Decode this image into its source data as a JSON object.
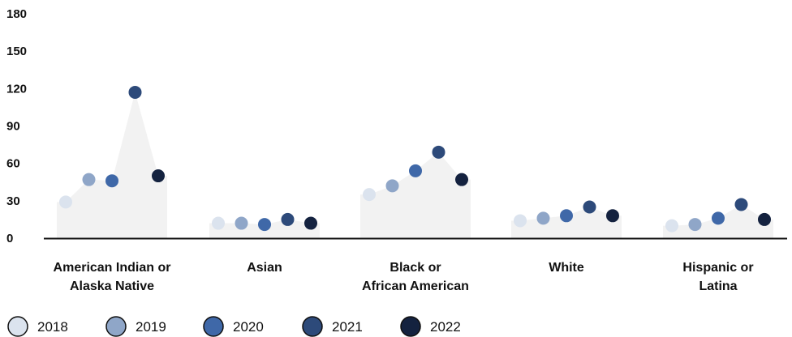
{
  "chart_data": {
    "type": "scatter",
    "title": "",
    "xlabel": "",
    "ylabel": "",
    "ylim": [
      0,
      180
    ],
    "yticks": [
      "0",
      "30",
      "60",
      "90",
      "120",
      "150",
      "180"
    ],
    "grid": false,
    "legend_position": "bottom-left",
    "categories": [
      {
        "lines": [
          "American Indian or",
          "Alaska Native"
        ]
      },
      {
        "lines": [
          "Asian"
        ]
      },
      {
        "lines": [
          "Black or",
          "African American"
        ]
      },
      {
        "lines": [
          "White"
        ]
      },
      {
        "lines": [
          "Hispanic or",
          "Latina"
        ]
      }
    ],
    "series": [
      {
        "name": "2018",
        "color": "#dbe3ee",
        "values": [
          29,
          12,
          35,
          14,
          10
        ]
      },
      {
        "name": "2019",
        "color": "#8fa6c8",
        "values": [
          47,
          12,
          42,
          16,
          11
        ]
      },
      {
        "name": "2020",
        "color": "#3f68a8",
        "values": [
          46,
          11,
          54,
          18,
          16
        ]
      },
      {
        "name": "2021",
        "color": "#2d4a7a",
        "values": [
          117,
          15,
          69,
          25,
          27
        ]
      },
      {
        "name": "2022",
        "color": "#14223f",
        "values": [
          50,
          12,
          47,
          18,
          15
        ]
      }
    ],
    "band_color": "#f2f2f2"
  }
}
